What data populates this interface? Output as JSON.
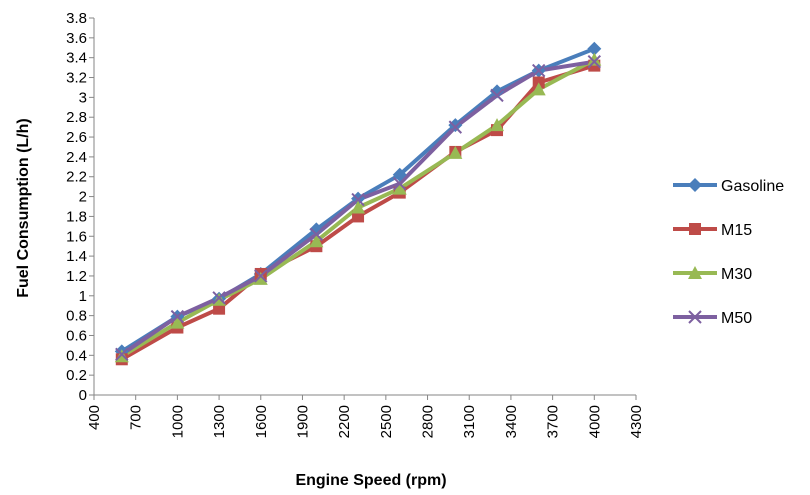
{
  "chart_data": {
    "type": "line",
    "xlabel": "Engine Speed (rpm)",
    "ylabel": "Fuel Consumption (L/h)",
    "xlim": [
      400,
      4300
    ],
    "ylim": [
      0,
      3.8
    ],
    "x_ticks": [
      "400",
      "700",
      "1000",
      "1300",
      "1600",
      "1900",
      "2200",
      "2500",
      "2800",
      "3100",
      "3400",
      "3700",
      "4000",
      "4300"
    ],
    "y_ticks": [
      "0",
      "0.2",
      "0.4",
      "0.6",
      "0.8",
      "1",
      "1.2",
      "1.4",
      "1.6",
      "1.8",
      "2",
      "2.2",
      "2.4",
      "2.6",
      "2.8",
      "3",
      "3.2",
      "3.4",
      "3.6",
      "3.8"
    ],
    "grid": false,
    "legend_position": "right",
    "x": [
      600,
      1000,
      1300,
      1600,
      2000,
      2300,
      2600,
      3000,
      3300,
      3600,
      4000
    ],
    "series": [
      {
        "name": "Gasoline",
        "color": "#4a7ebb",
        "marker": "diamond",
        "values": [
          0.44,
          0.79,
          0.97,
          1.22,
          1.67,
          1.98,
          2.22,
          2.72,
          3.06,
          3.27,
          3.49
        ]
      },
      {
        "name": "M15",
        "color": "#be4b48",
        "marker": "square",
        "values": [
          0.36,
          0.68,
          0.87,
          1.22,
          1.5,
          1.8,
          2.04,
          2.45,
          2.67,
          3.15,
          3.32
        ]
      },
      {
        "name": "M30",
        "color": "#98b954",
        "marker": "triangle",
        "values": [
          0.39,
          0.73,
          0.96,
          1.17,
          1.55,
          1.89,
          2.08,
          2.44,
          2.72,
          3.08,
          3.38
        ]
      },
      {
        "name": "M50",
        "color": "#7d60a0",
        "marker": "x",
        "values": [
          0.41,
          0.79,
          0.98,
          1.2,
          1.62,
          1.97,
          2.13,
          2.7,
          3.02,
          3.27,
          3.36
        ]
      }
    ]
  }
}
